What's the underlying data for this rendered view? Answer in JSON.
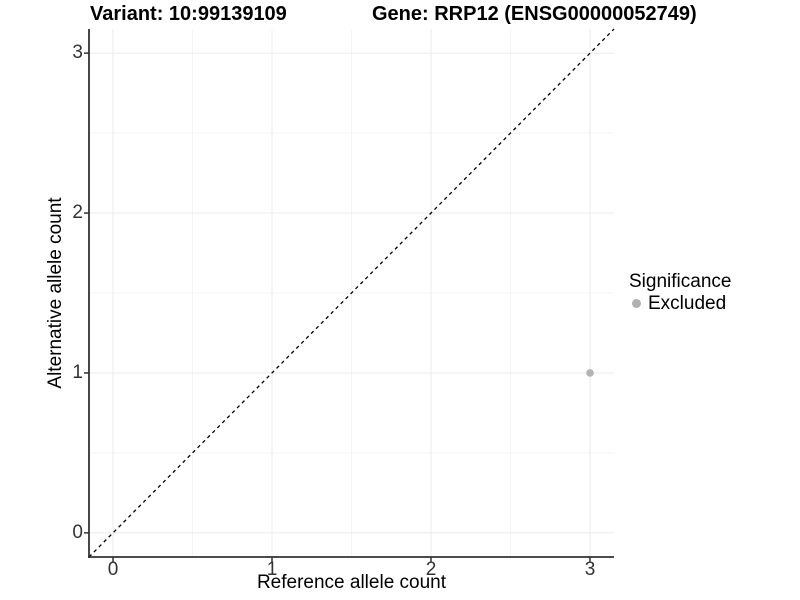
{
  "chart_data": {
    "type": "scatter",
    "titles": {
      "left": "Variant: 10:99139109",
      "right": "Gene: RRP12 (ENSG00000052749)"
    },
    "xlabel": "Reference allele count",
    "ylabel": "Alternative allele count",
    "xticks": [
      0,
      1,
      2,
      3
    ],
    "yticks": [
      0,
      1,
      2,
      3
    ],
    "minor_xticks": [
      0.5,
      1.5,
      2.5
    ],
    "minor_yticks": [
      0.5,
      1.5,
      2.5
    ],
    "xlim": [
      -0.151,
      3.151
    ],
    "ylim": [
      -0.151,
      3.151
    ],
    "grid": true,
    "points": [
      {
        "x": 3,
        "y": 1,
        "series": "Excluded"
      }
    ],
    "abline": {
      "slope": 1,
      "intercept": 0,
      "dashed": true,
      "color": "#000000"
    },
    "legend": {
      "title": "Significance",
      "position": "right",
      "items": [
        {
          "label": "Excluded",
          "color": "#b0b0b0"
        }
      ]
    },
    "colors": {
      "point": "#b3b3b3",
      "grid_major": "#ebebeb",
      "grid_minor": "#f4f4f4",
      "axis_line": "#333333",
      "tick_mark": "#333333",
      "tick_text": "#333333",
      "background": "#ffffff"
    }
  }
}
